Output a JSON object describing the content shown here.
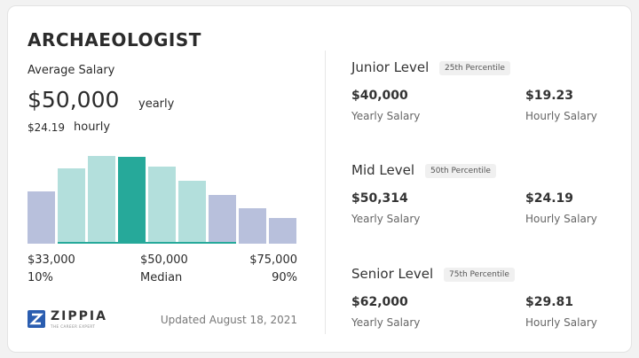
{
  "header": {
    "title": "ARCHAEOLOGIST"
  },
  "average": {
    "label": "Average Salary",
    "salary": "$50,000",
    "period": "yearly",
    "hourly": "$24.19",
    "hourly_unit": "hourly"
  },
  "range": {
    "low": "$33,000",
    "mid": "$50,000",
    "high": "$75,000",
    "low_pct": "10%",
    "mid_pct": "Median",
    "high_pct": "90%"
  },
  "footer": {
    "logo": "ZIPPIA",
    "tagline": "THE CAREER EXPERT",
    "updated": "Updated August 18, 2021"
  },
  "levels": [
    {
      "name": "Junior Level",
      "percentile": "25th Percentile",
      "yearly": "$40,000",
      "yearly_label": "Yearly Salary",
      "hourly": "$19.23",
      "hourly_label": "Hourly Salary"
    },
    {
      "name": "Mid Level",
      "percentile": "50th Percentile",
      "yearly": "$50,314",
      "yearly_label": "Yearly Salary",
      "hourly": "$24.19",
      "hourly_label": "Hourly Salary"
    },
    {
      "name": "Senior Level",
      "percentile": "75th Percentile",
      "yearly": "$62,000",
      "yearly_label": "Yearly Salary",
      "hourly": "$29.81",
      "hourly_label": "Hourly Salary"
    }
  ]
}
